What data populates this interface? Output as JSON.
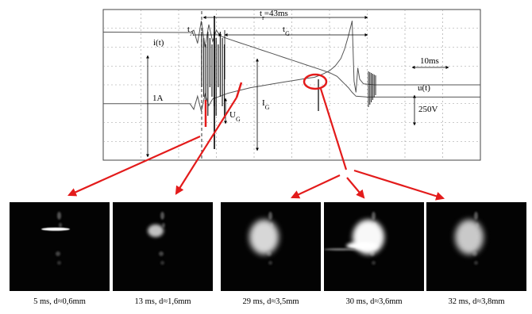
{
  "chart_data": {
    "type": "line",
    "annotations": {
      "t_total": "t",
      "t_total_sub": "r",
      "t_total_value": "=43ms",
      "t_A": "t",
      "t_A_sub": "A",
      "t_G": "t",
      "t_G_sub": "G",
      "i_label": "i(t)",
      "u_label": "u(t)",
      "I_G": "I",
      "I_G_sub": "G",
      "U_G": "U",
      "U_G_sub": "G",
      "scale_current": "1A",
      "scale_time": "10ms",
      "scale_voltage": "250V"
    },
    "series": [
      {
        "name": "i(t)",
        "points": [
          [
            0,
            2.8
          ],
          [
            23,
            2.78
          ],
          [
            24,
            2.9
          ],
          [
            25,
            2.2
          ],
          [
            26,
            3.4
          ],
          [
            27,
            2.0
          ],
          [
            28,
            3.2
          ],
          [
            29,
            2.3
          ],
          [
            30,
            2.9
          ],
          [
            31,
            2.6
          ],
          [
            33,
            2.45
          ],
          [
            36,
            2.25
          ],
          [
            39,
            2.05
          ],
          [
            42,
            1.85
          ],
          [
            45,
            1.65
          ],
          [
            48,
            1.45
          ],
          [
            51,
            1.25
          ],
          [
            54,
            1.05
          ],
          [
            57,
            0.85
          ],
          [
            60,
            0.65
          ],
          [
            62,
            0.45
          ],
          [
            63,
            0.25
          ],
          [
            64,
            0.05
          ],
          [
            65,
            -0.15
          ],
          [
            66,
            -0.4
          ],
          [
            67,
            -0.6
          ],
          [
            70,
            -0.65
          ],
          [
            100,
            -0.65
          ]
        ]
      },
      {
        "name": "u(t)",
        "points": [
          [
            0,
            -1.0
          ],
          [
            23,
            -1.0
          ],
          [
            24,
            -1.3
          ],
          [
            25,
            -0.6
          ],
          [
            26,
            -1.4
          ],
          [
            27,
            -0.5
          ],
          [
            28,
            -1.1
          ],
          [
            29,
            -0.75
          ],
          [
            31,
            -0.6
          ],
          [
            33,
            -0.45
          ],
          [
            36,
            -0.3
          ],
          [
            39,
            -0.15
          ],
          [
            42,
            -0.05
          ],
          [
            45,
            0.05
          ],
          [
            48,
            0.15
          ],
          [
            51,
            0.25
          ],
          [
            54,
            0.35
          ],
          [
            56,
            0.4
          ],
          [
            58,
            0.55
          ],
          [
            60,
            0.75
          ],
          [
            61.5,
            1.0
          ],
          [
            63,
            1.4
          ],
          [
            64,
            1.9
          ],
          [
            65,
            2.6
          ],
          [
            66,
            3.4
          ],
          [
            66.5,
            0.2
          ],
          [
            67,
            -0.4
          ],
          [
            67.5,
            0.9
          ],
          [
            68,
            0.3
          ],
          [
            69,
            0.05
          ],
          [
            72,
            0.0
          ],
          [
            100,
            0.0
          ]
        ]
      }
    ]
  },
  "photos": {
    "items": [
      {
        "caption": "5 ms, d≈0,6mm",
        "level": 0.35
      },
      {
        "caption": "13 ms, d≈1,6mm",
        "level": 0.55
      },
      {
        "caption": "29 ms, d≈3,5mm",
        "level": 0.7
      },
      {
        "caption": "30 ms, d≈3,6mm",
        "level": 0.95
      },
      {
        "caption": "32 ms, d≈3,8mm",
        "level": 0.6
      }
    ]
  },
  "colors": {
    "trace": "#555555",
    "grid": "#9a9a9a",
    "marker": "#e31b1b",
    "photo_bg": "#030303"
  }
}
